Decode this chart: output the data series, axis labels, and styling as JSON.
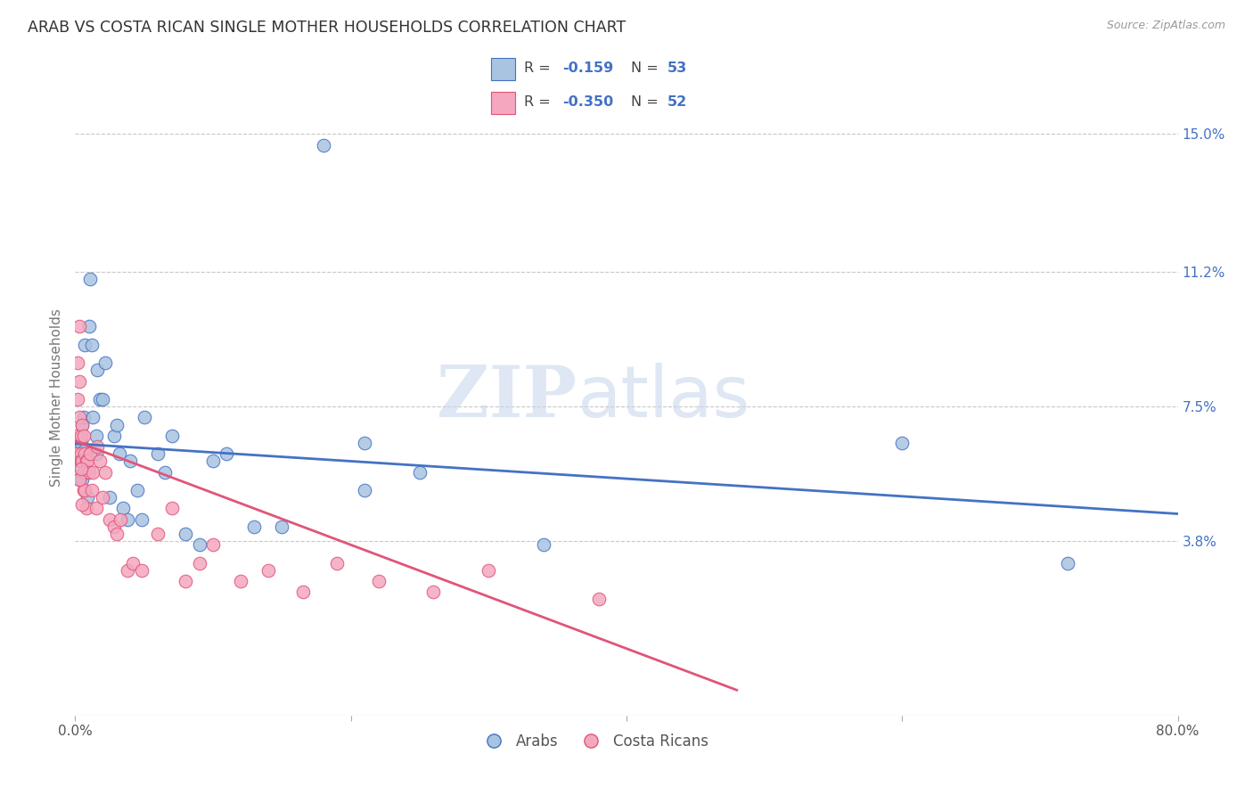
{
  "title": "ARAB VS COSTA RICAN SINGLE MOTHER HOUSEHOLDS CORRELATION CHART",
  "source": "Source: ZipAtlas.com",
  "ylabel": "Single Mother Households",
  "xlim": [
    0.0,
    0.8
  ],
  "ylim": [
    -0.01,
    0.165
  ],
  "arab_color": "#a8c4e0",
  "arab_line_color": "#4472c4",
  "costa_color": "#f4a7bf",
  "costa_line_color": "#e05578",
  "arab_R": -0.159,
  "arab_N": 53,
  "costa_R": -0.35,
  "costa_N": 52,
  "watermark_zip": "ZIP",
  "watermark_atlas": "atlas",
  "legend_labels": [
    "Arabs",
    "Costa Ricans"
  ],
  "right_ytick_vals": [
    0.038,
    0.075,
    0.112,
    0.15
  ],
  "right_ytick_labels": [
    "3.8%",
    "7.5%",
    "11.2%",
    "15.0%"
  ],
  "xtick_vals": [
    0.0,
    0.2,
    0.4,
    0.6,
    0.8
  ],
  "xtick_labels": [
    "0.0%",
    "",
    "",
    "",
    "80.0%"
  ],
  "arab_x": [
    0.001,
    0.002,
    0.002,
    0.003,
    0.003,
    0.004,
    0.004,
    0.005,
    0.005,
    0.005,
    0.006,
    0.006,
    0.007,
    0.007,
    0.008,
    0.009,
    0.01,
    0.01,
    0.011,
    0.012,
    0.013,
    0.015,
    0.015,
    0.016,
    0.018,
    0.02,
    0.022,
    0.025,
    0.028,
    0.03,
    0.032,
    0.035,
    0.038,
    0.04,
    0.045,
    0.048,
    0.05,
    0.06,
    0.065,
    0.07,
    0.08,
    0.09,
    0.1,
    0.11,
    0.13,
    0.15,
    0.18,
    0.21,
    0.25,
    0.34,
    0.6,
    0.72,
    0.21
  ],
  "arab_y": [
    0.063,
    0.062,
    0.056,
    0.06,
    0.055,
    0.065,
    0.06,
    0.07,
    0.062,
    0.055,
    0.072,
    0.06,
    0.092,
    0.063,
    0.057,
    0.05,
    0.097,
    0.062,
    0.11,
    0.092,
    0.072,
    0.067,
    0.062,
    0.085,
    0.077,
    0.077,
    0.087,
    0.05,
    0.067,
    0.07,
    0.062,
    0.047,
    0.044,
    0.06,
    0.052,
    0.044,
    0.072,
    0.062,
    0.057,
    0.067,
    0.04,
    0.037,
    0.06,
    0.062,
    0.042,
    0.042,
    0.147,
    0.065,
    0.057,
    0.037,
    0.065,
    0.032,
    0.052
  ],
  "costa_x": [
    0.001,
    0.001,
    0.002,
    0.002,
    0.003,
    0.003,
    0.003,
    0.004,
    0.004,
    0.004,
    0.005,
    0.005,
    0.006,
    0.006,
    0.006,
    0.007,
    0.007,
    0.008,
    0.008,
    0.009,
    0.01,
    0.011,
    0.012,
    0.013,
    0.015,
    0.016,
    0.018,
    0.02,
    0.022,
    0.025,
    0.028,
    0.03,
    0.033,
    0.038,
    0.042,
    0.048,
    0.06,
    0.07,
    0.08,
    0.09,
    0.1,
    0.12,
    0.14,
    0.165,
    0.19,
    0.22,
    0.26,
    0.3,
    0.38,
    0.003,
    0.004,
    0.005
  ],
  "costa_y": [
    0.062,
    0.067,
    0.087,
    0.077,
    0.097,
    0.082,
    0.072,
    0.067,
    0.062,
    0.06,
    0.07,
    0.06,
    0.067,
    0.057,
    0.052,
    0.062,
    0.052,
    0.06,
    0.047,
    0.06,
    0.057,
    0.062,
    0.052,
    0.057,
    0.047,
    0.064,
    0.06,
    0.05,
    0.057,
    0.044,
    0.042,
    0.04,
    0.044,
    0.03,
    0.032,
    0.03,
    0.04,
    0.047,
    0.027,
    0.032,
    0.037,
    0.027,
    0.03,
    0.024,
    0.032,
    0.027,
    0.024,
    0.03,
    0.022,
    0.055,
    0.058,
    0.048
  ],
  "arab_line_x": [
    0.0,
    0.8
  ],
  "arab_line_y": [
    0.0648,
    0.0455
  ],
  "costa_line_x": [
    0.0,
    0.48
  ],
  "costa_line_y": [
    0.0655,
    -0.003
  ]
}
